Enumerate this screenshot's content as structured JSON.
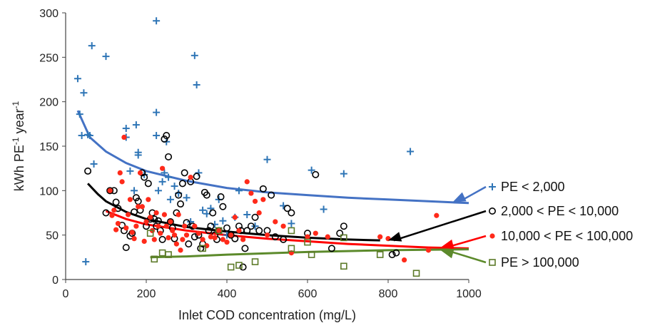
{
  "chart_data": {
    "type": "scatter",
    "xlabel": "Inlet COD concentration (mg/L)",
    "ylabel": {
      "base": "kWh PE",
      "sup1": "-1",
      "mid": " year",
      "sup2": "-1"
    },
    "xlim": [
      0,
      1000
    ],
    "ylim": [
      0,
      300
    ],
    "xticks": [
      "0",
      "200",
      "400",
      "600",
      "800",
      "1000"
    ],
    "yticks": [
      "0",
      "50",
      "100",
      "150",
      "200",
      "250",
      "300"
    ],
    "grid": false,
    "legend_position": "right",
    "series": [
      {
        "name": "PE < 2,000",
        "marker": "plus",
        "color": "#2e75b6",
        "points": [
          [
            30,
            226
          ],
          [
            35,
            186
          ],
          [
            40,
            162
          ],
          [
            45,
            210
          ],
          [
            50,
            20
          ],
          [
            55,
            163
          ],
          [
            60,
            162
          ],
          [
            65,
            263
          ],
          [
            70,
            130
          ],
          [
            100,
            251
          ],
          [
            150,
            170
          ],
          [
            150,
            160
          ],
          [
            160,
            122
          ],
          [
            170,
            100
          ],
          [
            175,
            174
          ],
          [
            180,
            143
          ],
          [
            180,
            140
          ],
          [
            195,
            118
          ],
          [
            225,
            291
          ],
          [
            225,
            188
          ],
          [
            225,
            162
          ],
          [
            230,
            100
          ],
          [
            240,
            110
          ],
          [
            245,
            120
          ],
          [
            250,
            155
          ],
          [
            255,
            115
          ],
          [
            260,
            90
          ],
          [
            270,
            105
          ],
          [
            280,
            97
          ],
          [
            300,
            92
          ],
          [
            310,
            65
          ],
          [
            320,
            252
          ],
          [
            325,
            219
          ],
          [
            330,
            120
          ],
          [
            340,
            78
          ],
          [
            350,
            74
          ],
          [
            360,
            80
          ],
          [
            370,
            62
          ],
          [
            380,
            90
          ],
          [
            390,
            66
          ],
          [
            400,
            50
          ],
          [
            420,
            70
          ],
          [
            430,
            100
          ],
          [
            450,
            73
          ],
          [
            470,
            60
          ],
          [
            500,
            135
          ],
          [
            540,
            83
          ],
          [
            560,
            63
          ],
          [
            610,
            123
          ],
          [
            640,
            79
          ],
          [
            690,
            119
          ],
          [
            855,
            144
          ]
        ]
      },
      {
        "name": "2,000 < PE < 10,000",
        "marker": "circle",
        "color": "#000000",
        "points": [
          [
            55,
            122
          ],
          [
            100,
            75
          ],
          [
            110,
            100
          ],
          [
            120,
            100
          ],
          [
            125,
            87
          ],
          [
            130,
            80
          ],
          [
            140,
            61
          ],
          [
            145,
            55
          ],
          [
            150,
            36
          ],
          [
            160,
            49
          ],
          [
            165,
            52
          ],
          [
            170,
            76
          ],
          [
            175,
            92
          ],
          [
            180,
            88
          ],
          [
            185,
            78
          ],
          [
            190,
            120
          ],
          [
            195,
            115
          ],
          [
            200,
            60
          ],
          [
            205,
            108
          ],
          [
            210,
            68
          ],
          [
            215,
            75
          ],
          [
            220,
            68
          ],
          [
            225,
            60
          ],
          [
            230,
            66
          ],
          [
            235,
            55
          ],
          [
            240,
            45
          ],
          [
            245,
            158
          ],
          [
            250,
            162
          ],
          [
            255,
            138
          ],
          [
            260,
            65
          ],
          [
            265,
            58
          ],
          [
            270,
            46
          ],
          [
            275,
            75
          ],
          [
            280,
            95
          ],
          [
            285,
            85
          ],
          [
            290,
            108
          ],
          [
            295,
            120
          ],
          [
            300,
            64
          ],
          [
            305,
            40
          ],
          [
            310,
            110
          ],
          [
            315,
            60
          ],
          [
            320,
            48
          ],
          [
            325,
            116
          ],
          [
            330,
            50
          ],
          [
            335,
            35
          ],
          [
            340,
            40
          ],
          [
            345,
            98
          ],
          [
            350,
            95
          ],
          [
            355,
            55
          ],
          [
            360,
            60
          ],
          [
            365,
            75
          ],
          [
            370,
            50
          ],
          [
            375,
            45
          ],
          [
            380,
            55
          ],
          [
            385,
            93
          ],
          [
            390,
            82
          ],
          [
            400,
            58
          ],
          [
            410,
            50
          ],
          [
            420,
            46
          ],
          [
            430,
            60
          ],
          [
            435,
            55
          ],
          [
            440,
            14
          ],
          [
            445,
            35
          ],
          [
            450,
            55
          ],
          [
            460,
            60
          ],
          [
            470,
            70
          ],
          [
            480,
            55
          ],
          [
            490,
            102
          ],
          [
            500,
            55
          ],
          [
            510,
            95
          ],
          [
            520,
            48
          ],
          [
            540,
            45
          ],
          [
            550,
            80
          ],
          [
            560,
            75
          ],
          [
            600,
            52
          ],
          [
            620,
            118
          ],
          [
            660,
            35
          ],
          [
            680,
            52
          ],
          [
            690,
            60
          ],
          [
            810,
            28
          ],
          [
            820,
            30
          ]
        ]
      },
      {
        "name": "10,000 < PE < 100,000",
        "marker": "dot",
        "color": "#ff2a1a",
        "points": [
          [
            110,
            100
          ],
          [
            115,
            72
          ],
          [
            120,
            78
          ],
          [
            125,
            56
          ],
          [
            130,
            63
          ],
          [
            135,
            120
          ],
          [
            140,
            110
          ],
          [
            145,
            160
          ],
          [
            150,
            58
          ],
          [
            155,
            73
          ],
          [
            160,
            90
          ],
          [
            165,
            53
          ],
          [
            170,
            46
          ],
          [
            175,
            60
          ],
          [
            180,
            82
          ],
          [
            185,
            120
          ],
          [
            190,
            82
          ],
          [
            195,
            43
          ],
          [
            200,
            65
          ],
          [
            205,
            90
          ],
          [
            210,
            70
          ],
          [
            215,
            55
          ],
          [
            220,
            45
          ],
          [
            225,
            75
          ],
          [
            230,
            60
          ],
          [
            235,
            52
          ],
          [
            240,
            125
          ],
          [
            245,
            73
          ],
          [
            250,
            60
          ],
          [
            255,
            47
          ],
          [
            260,
            65
          ],
          [
            265,
            55
          ],
          [
            270,
            50
          ],
          [
            275,
            40
          ],
          [
            280,
            73
          ],
          [
            285,
            33
          ],
          [
            290,
            45
          ],
          [
            295,
            60
          ],
          [
            300,
            50
          ],
          [
            310,
            115
          ],
          [
            320,
            60
          ],
          [
            330,
            52
          ],
          [
            340,
            45
          ],
          [
            350,
            38
          ],
          [
            360,
            48
          ],
          [
            370,
            47
          ],
          [
            380,
            55
          ],
          [
            390,
            45
          ],
          [
            400,
            42
          ],
          [
            410,
            50
          ],
          [
            420,
            70
          ],
          [
            430,
            55
          ],
          [
            440,
            45
          ],
          [
            450,
            110
          ],
          [
            460,
            97
          ],
          [
            470,
            88
          ],
          [
            480,
            75
          ],
          [
            490,
            90
          ],
          [
            500,
            50
          ],
          [
            520,
            65
          ],
          [
            540,
            60
          ],
          [
            560,
            30
          ],
          [
            600,
            48
          ],
          [
            620,
            52
          ],
          [
            650,
            48
          ],
          [
            780,
            48
          ],
          [
            800,
            46
          ],
          [
            840,
            22
          ],
          [
            900,
            33
          ],
          [
            920,
            72
          ]
        ]
      },
      {
        "name": "PE > 100,000",
        "marker": "square",
        "color": "#5c7a28",
        "points": [
          [
            210,
            52
          ],
          [
            220,
            23
          ],
          [
            240,
            30
          ],
          [
            255,
            28
          ],
          [
            340,
            35
          ],
          [
            380,
            55
          ],
          [
            410,
            14
          ],
          [
            430,
            16
          ],
          [
            470,
            20
          ],
          [
            560,
            55
          ],
          [
            560,
            35
          ],
          [
            600,
            42
          ],
          [
            610,
            28
          ],
          [
            690,
            47
          ],
          [
            690,
            15
          ],
          [
            780,
            28
          ],
          [
            870,
            7
          ]
        ]
      }
    ],
    "trendlines": [
      {
        "series": "PE < 2,000",
        "color": "#4472c4",
        "points": [
          [
            30,
            190
          ],
          [
            60,
            160
          ],
          [
            100,
            144
          ],
          [
            150,
            131
          ],
          [
            200,
            122
          ],
          [
            300,
            111
          ],
          [
            400,
            103
          ],
          [
            500,
            98
          ],
          [
            600,
            95
          ],
          [
            700,
            92
          ],
          [
            800,
            90
          ],
          [
            900,
            88
          ],
          [
            1000,
            86
          ]
        ]
      },
      {
        "series": "2,000 < PE < 10,000",
        "color": "#000000",
        "points": [
          [
            55,
            108
          ],
          [
            80,
            96
          ],
          [
            100,
            88
          ],
          [
            150,
            76
          ],
          [
            200,
            68
          ],
          [
            300,
            59
          ],
          [
            400,
            54
          ],
          [
            500,
            50
          ],
          [
            600,
            47
          ],
          [
            700,
            45
          ],
          [
            780,
            44
          ]
        ]
      },
      {
        "series": "10,000 < PE < 100,000",
        "color": "#ff0000",
        "points": [
          [
            100,
            77
          ],
          [
            150,
            68
          ],
          [
            200,
            62
          ],
          [
            300,
            55
          ],
          [
            400,
            50
          ],
          [
            500,
            46
          ],
          [
            600,
            43
          ],
          [
            700,
            40
          ],
          [
            800,
            38
          ],
          [
            900,
            36
          ],
          [
            1000,
            35
          ]
        ]
      },
      {
        "series": "PE > 100,000",
        "color": "#5c8a2b",
        "points": [
          [
            210,
            25
          ],
          [
            300,
            26
          ],
          [
            400,
            28
          ],
          [
            500,
            29.5
          ],
          [
            600,
            31
          ],
          [
            700,
            32
          ],
          [
            800,
            33
          ],
          [
            900,
            33.5
          ],
          [
            1000,
            34
          ]
        ]
      }
    ],
    "legend": [
      {
        "label": "PE < 2,000",
        "marker": "plus",
        "color": "#2e75b6",
        "arrow_color": "#4472c4",
        "arrow_target": [
          960,
          87
        ]
      },
      {
        "label": "2,000 < PE < 10,000",
        "marker": "circle",
        "color": "#000000",
        "arrow_color": "#000000",
        "arrow_target": [
          800,
          44
        ]
      },
      {
        "label": "10,000 < PE < 100,000",
        "marker": "dot",
        "color": "#ff2a1a",
        "arrow_color": "#ff0000",
        "arrow_target": [
          930,
          36
        ]
      },
      {
        "label": "PE > 100,000",
        "marker": "square",
        "color": "#5c7a28",
        "arrow_color": "#5c8a2b",
        "arrow_target": [
          930,
          33
        ]
      }
    ]
  }
}
